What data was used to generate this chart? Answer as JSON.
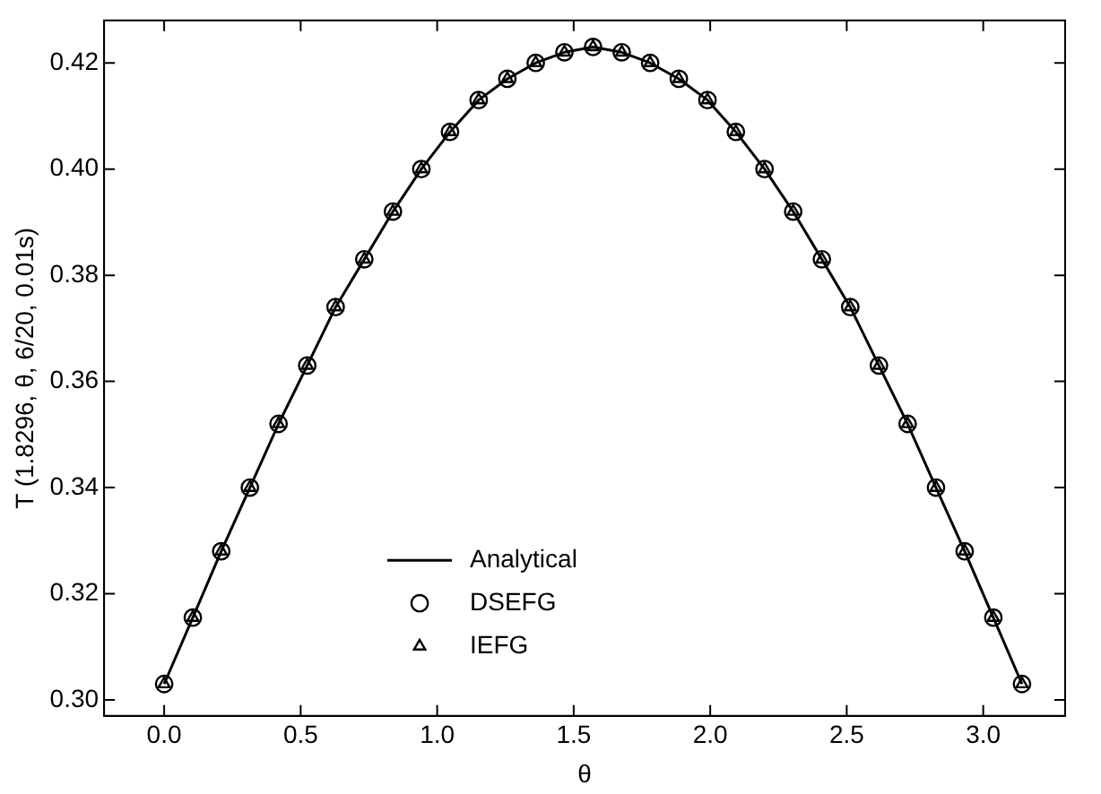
{
  "chart_data": {
    "type": "line",
    "xlabel": "θ",
    "ylabel": "T (1.8296, θ, 6/20, 0.01s)",
    "x": [
      0,
      0.105,
      0.209,
      0.314,
      0.419,
      0.524,
      0.628,
      0.733,
      0.838,
      0.942,
      1.047,
      1.152,
      1.257,
      1.361,
      1.466,
      1.571,
      1.676,
      1.78,
      1.885,
      1.99,
      2.094,
      2.199,
      2.304,
      2.409,
      2.513,
      2.618,
      2.723,
      2.827,
      2.932,
      3.037,
      3.142
    ],
    "series": [
      {
        "name": "Analytical",
        "type": "line",
        "color": "#000000",
        "marker": "none",
        "line_style": "solid",
        "values": [
          0.303,
          0.3155,
          0.328,
          0.34,
          0.352,
          0.363,
          0.374,
          0.383,
          0.392,
          0.4,
          0.407,
          0.413,
          0.417,
          0.42,
          0.422,
          0.423,
          0.422,
          0.42,
          0.417,
          0.413,
          0.407,
          0.4,
          0.392,
          0.383,
          0.374,
          0.363,
          0.352,
          0.34,
          0.328,
          0.3155,
          0.303
        ]
      },
      {
        "name": "DSEFG",
        "type": "scatter",
        "color": "#000000",
        "marker": "circle",
        "values": [
          0.303,
          0.3155,
          0.328,
          0.34,
          0.352,
          0.363,
          0.374,
          0.383,
          0.392,
          0.4,
          0.407,
          0.413,
          0.417,
          0.42,
          0.422,
          0.423,
          0.422,
          0.42,
          0.417,
          0.413,
          0.407,
          0.4,
          0.392,
          0.383,
          0.374,
          0.363,
          0.352,
          0.34,
          0.328,
          0.3155,
          0.303
        ]
      },
      {
        "name": "IEFG",
        "type": "scatter",
        "color": "#000000",
        "marker": "triangle",
        "values": [
          0.303,
          0.3155,
          0.328,
          0.34,
          0.352,
          0.363,
          0.374,
          0.383,
          0.392,
          0.4,
          0.407,
          0.413,
          0.417,
          0.42,
          0.422,
          0.423,
          0.422,
          0.42,
          0.417,
          0.413,
          0.407,
          0.4,
          0.392,
          0.383,
          0.374,
          0.363,
          0.352,
          0.34,
          0.328,
          0.3155,
          0.303
        ]
      }
    ],
    "xlim": [
      -0.22,
      3.3
    ],
    "xticks": [
      {
        "value": 0,
        "label": "0.0"
      },
      {
        "value": 0.5,
        "label": "0.5"
      },
      {
        "value": 1,
        "label": "1.0"
      },
      {
        "value": 1.5,
        "label": "1.5"
      },
      {
        "value": 2,
        "label": "2.0"
      },
      {
        "value": 2.5,
        "label": "2.5"
      },
      {
        "value": 3,
        "label": "3.0"
      }
    ],
    "ylim": [
      0.297,
      0.428
    ],
    "yticks": [
      {
        "value": 0.3,
        "label": "0.30"
      },
      {
        "value": 0.32,
        "label": "0.32"
      },
      {
        "value": 0.34,
        "label": "0.34"
      },
      {
        "value": 0.36,
        "label": "0.36"
      },
      {
        "value": 0.38,
        "label": "0.38"
      },
      {
        "value": 0.4,
        "label": "0.40"
      },
      {
        "value": 0.42,
        "label": "0.42"
      }
    ],
    "grid": false,
    "legend": "bottom"
  }
}
